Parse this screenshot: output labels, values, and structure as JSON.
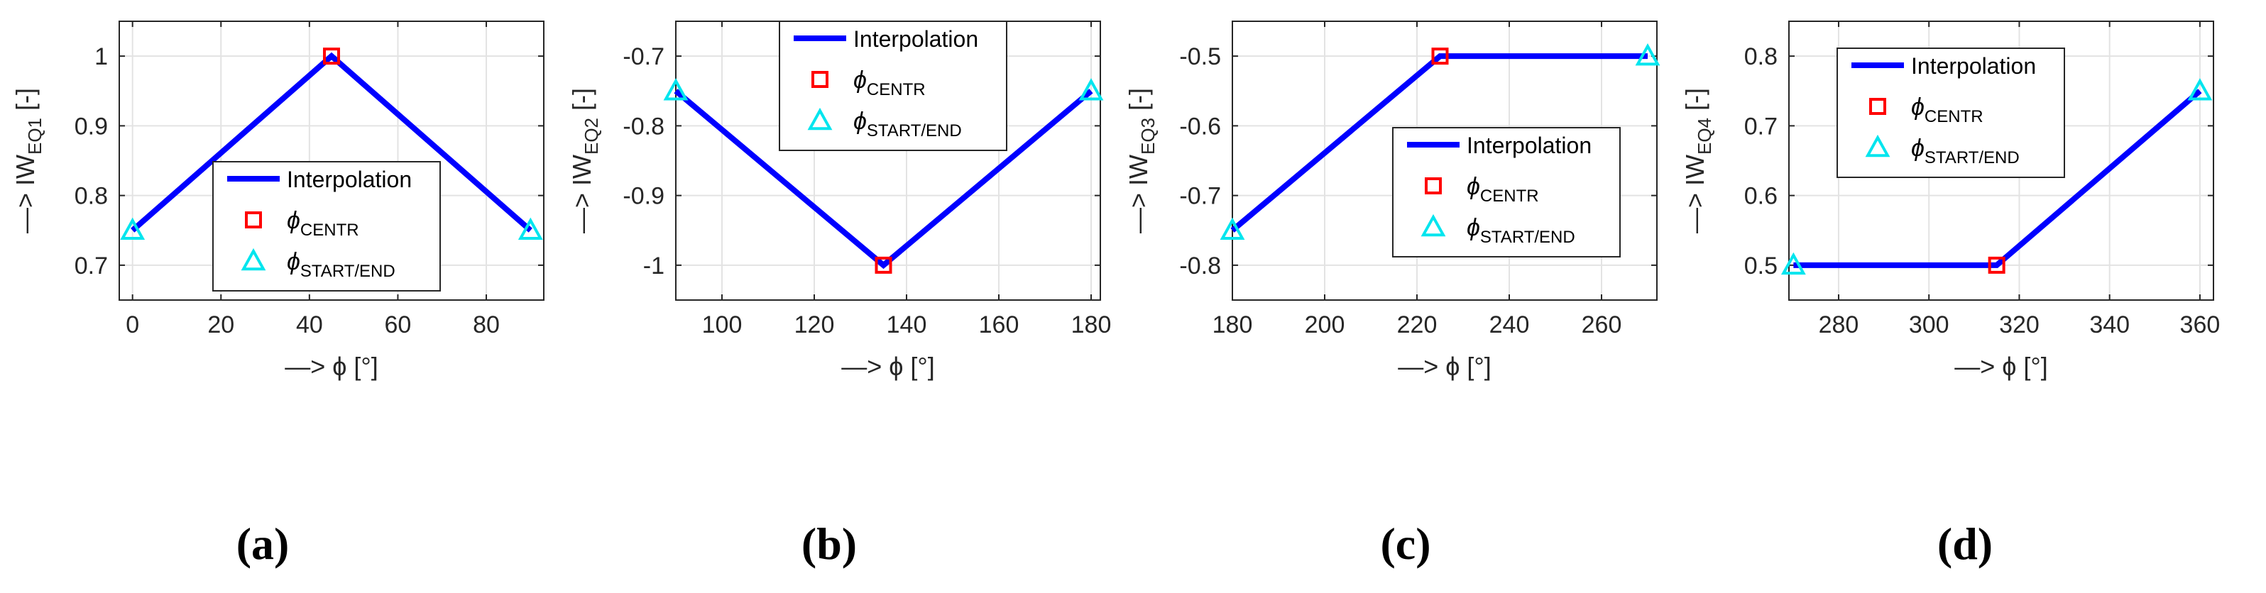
{
  "figure": {
    "colors": {
      "line": "#0000ff",
      "center_marker": "#ff0000",
      "endpoint_marker": "#00e5ee",
      "grid": "#e3e3e3",
      "axis": "#262626",
      "text": "#262626"
    },
    "legend_labels": {
      "line": "Interpolation",
      "centr_symbol": "ϕ",
      "centr_sub": "CENTR",
      "endpoint_symbol": "ϕ",
      "endpoint_sub": "START/END"
    }
  },
  "chart_data": [
    {
      "type": "line",
      "panel": "a",
      "caption": "(a)",
      "xlabel": "—> ϕ [°]",
      "ylabel_main": "—> IW",
      "ylabel_sub": "EQ1",
      "ylabel_unit": " [-]",
      "xlim": [
        -3,
        93
      ],
      "ylim": [
        0.65,
        1.05
      ],
      "xticks": [
        0,
        20,
        40,
        60,
        80
      ],
      "xtick_labels": [
        "0",
        "20",
        "40",
        "60",
        "80"
      ],
      "yticks": [
        0.7,
        0.8,
        0.9,
        1.0
      ],
      "ytick_labels": [
        "0.7",
        "0.8",
        "0.9",
        "1"
      ],
      "series": [
        {
          "name": "Interpolation",
          "x": [
            0,
            45,
            90
          ],
          "y": [
            0.75,
            1.0,
            0.75
          ]
        },
        {
          "name": "ϕCENTR",
          "marker": "square",
          "x": [
            45
          ],
          "y": [
            1.0
          ]
        },
        {
          "name": "ϕSTART/END",
          "marker": "triangle",
          "x": [
            0,
            90
          ],
          "y": [
            0.75,
            0.75
          ]
        }
      ],
      "legend_placement": "bottom-center"
    },
    {
      "type": "line",
      "panel": "b",
      "caption": "(b)",
      "xlabel": "—> ϕ [°]",
      "ylabel_main": "—> IW",
      "ylabel_sub": "EQ2",
      "ylabel_unit": " [-]",
      "xlim": [
        90,
        182
      ],
      "ylim": [
        -1.05,
        -0.65
      ],
      "xticks": [
        100,
        120,
        140,
        160,
        180
      ],
      "xtick_labels": [
        "100",
        "120",
        "140",
        "160",
        "180"
      ],
      "yticks": [
        -1.0,
        -0.9,
        -0.8,
        -0.7
      ],
      "ytick_labels": [
        "-1",
        "-0.9",
        "-0.8",
        "-0.7"
      ],
      "series": [
        {
          "name": "Interpolation",
          "x": [
            90,
            135,
            180
          ],
          "y": [
            -0.75,
            -1.0,
            -0.75
          ]
        },
        {
          "name": "ϕCENTR",
          "marker": "square",
          "x": [
            135
          ],
          "y": [
            -1.0
          ]
        },
        {
          "name": "ϕSTART/END",
          "marker": "triangle",
          "x": [
            90,
            180
          ],
          "y": [
            -0.75,
            -0.75
          ]
        }
      ],
      "legend_placement": "top-center"
    },
    {
      "type": "line",
      "panel": "c",
      "caption": "(c)",
      "xlabel": "—> ϕ [°]",
      "ylabel_main": "—> IW",
      "ylabel_sub": "EQ3",
      "ylabel_unit": " [-]",
      "xlim": [
        180,
        272
      ],
      "ylim": [
        -0.85,
        -0.45
      ],
      "xticks": [
        180,
        200,
        220,
        240,
        260
      ],
      "xtick_labels": [
        "180",
        "200",
        "220",
        "240",
        "260"
      ],
      "yticks": [
        -0.8,
        -0.7,
        -0.6,
        -0.5
      ],
      "ytick_labels": [
        "-0.8",
        "-0.7",
        "-0.6",
        "-0.5"
      ],
      "series": [
        {
          "name": "Interpolation",
          "x": [
            180,
            225,
            270
          ],
          "y": [
            -0.75,
            -0.5,
            -0.5
          ]
        },
        {
          "name": "ϕCENTR",
          "marker": "square",
          "x": [
            225
          ],
          "y": [
            -0.5
          ]
        },
        {
          "name": "ϕSTART/END",
          "marker": "triangle",
          "x": [
            180,
            270
          ],
          "y": [
            -0.75,
            -0.5
          ]
        }
      ],
      "legend_placement": "bottom-right"
    },
    {
      "type": "line",
      "panel": "d",
      "caption": "(d)",
      "xlabel": "—> ϕ [°]",
      "ylabel_main": "—> IW",
      "ylabel_sub": "EQ4",
      "ylabel_unit": " [-]",
      "xlim": [
        269,
        363
      ],
      "ylim": [
        0.45,
        0.85
      ],
      "xticks": [
        280,
        300,
        320,
        340,
        360
      ],
      "xtick_labels": [
        "280",
        "300",
        "320",
        "340",
        "360"
      ],
      "yticks": [
        0.5,
        0.6,
        0.7,
        0.8
      ],
      "ytick_labels": [
        "0.5",
        "0.6",
        "0.7",
        "0.8"
      ],
      "series": [
        {
          "name": "Interpolation",
          "x": [
            270,
            315,
            360
          ],
          "y": [
            0.5,
            0.5,
            0.75
          ]
        },
        {
          "name": "ϕCENTR",
          "marker": "square",
          "x": [
            315
          ],
          "y": [
            0.5
          ]
        },
        {
          "name": "ϕSTART/END",
          "marker": "triangle",
          "x": [
            270,
            360
          ],
          "y": [
            0.5,
            0.75
          ]
        }
      ],
      "legend_placement": "top-left"
    }
  ]
}
